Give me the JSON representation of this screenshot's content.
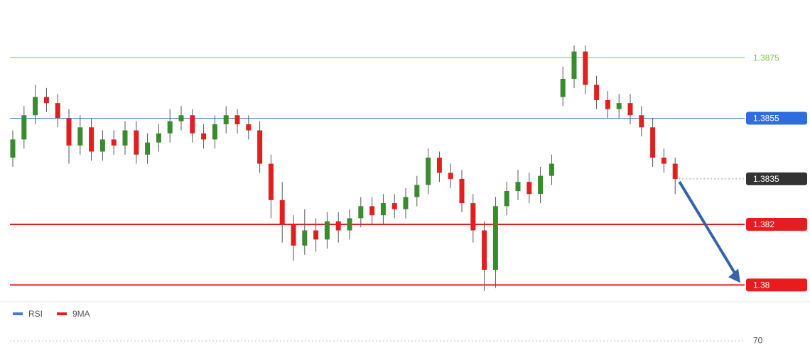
{
  "chart_data": {
    "type": "candlestick",
    "ylim": [
      1.3794,
      1.3894
    ],
    "open": [
      1.3842,
      1.3848,
      1.3856,
      1.3862,
      1.386,
      1.3855,
      1.3846,
      1.3852,
      1.3844,
      1.3848,
      1.3846,
      1.3851,
      1.3843,
      1.3847,
      1.385,
      1.3854,
      1.3856,
      1.385,
      1.3848,
      1.3853,
      1.3856,
      1.3853,
      1.3851,
      1.384,
      1.3828,
      1.382,
      1.3813,
      1.3818,
      1.3815,
      1.3821,
      1.3818,
      1.3822,
      1.3826,
      1.3823,
      1.3827,
      1.3825,
      1.3829,
      1.3833,
      1.3842,
      1.3837,
      1.3835,
      1.3827,
      1.3818,
      1.3805,
      1.3826,
      1.3831,
      1.3834,
      1.383,
      1.3836,
      1.3862,
      1.3868,
      1.3877,
      1.3866,
      1.3861,
      1.3858,
      1.386,
      1.3856,
      1.3852,
      1.3842,
      1.384
    ],
    "high": [
      1.3851,
      1.3859,
      1.3866,
      1.3865,
      1.3863,
      1.3858,
      1.3856,
      1.3855,
      1.3851,
      1.3851,
      1.3854,
      1.3854,
      1.385,
      1.3853,
      1.3858,
      1.3859,
      1.3858,
      1.3853,
      1.3856,
      1.3859,
      1.3858,
      1.3856,
      1.3854,
      1.3843,
      1.3834,
      1.3823,
      1.3825,
      1.3822,
      1.3824,
      1.3824,
      1.3825,
      1.3829,
      1.3829,
      1.383,
      1.383,
      1.3832,
      1.3836,
      1.3845,
      1.3844,
      1.384,
      1.3838,
      1.383,
      1.3821,
      1.3829,
      1.3834,
      1.3838,
      1.3837,
      1.3839,
      1.3843,
      1.3872,
      1.3879,
      1.3879,
      1.3869,
      1.3864,
      1.3863,
      1.3863,
      1.3859,
      1.3855,
      1.3845,
      1.3842
    ],
    "low": [
      1.3839,
      1.3845,
      1.3853,
      1.3857,
      1.3852,
      1.384,
      1.3843,
      1.3841,
      1.3841,
      1.3843,
      1.3843,
      1.384,
      1.384,
      1.3844,
      1.3847,
      1.3851,
      1.3847,
      1.3845,
      1.3845,
      1.385,
      1.385,
      1.3848,
      1.3837,
      1.3822,
      1.3814,
      1.3808,
      1.381,
      1.3811,
      1.3812,
      1.3814,
      1.3815,
      1.3819,
      1.382,
      1.382,
      1.3822,
      1.3822,
      1.3826,
      1.383,
      1.3834,
      1.3832,
      1.3824,
      1.3814,
      1.3798,
      1.3799,
      1.3823,
      1.3828,
      1.3827,
      1.3827,
      1.3833,
      1.3859,
      1.3865,
      1.3863,
      1.3858,
      1.3855,
      1.3855,
      1.3853,
      1.3849,
      1.3839,
      1.3837,
      1.383
    ],
    "close": [
      1.3848,
      1.3856,
      1.3862,
      1.386,
      1.3855,
      1.3846,
      1.3852,
      1.3844,
      1.3848,
      1.3846,
      1.3851,
      1.3843,
      1.3847,
      1.385,
      1.3854,
      1.3856,
      1.385,
      1.3848,
      1.3853,
      1.3856,
      1.3853,
      1.3851,
      1.384,
      1.3828,
      1.382,
      1.3813,
      1.3818,
      1.3815,
      1.3821,
      1.3818,
      1.3822,
      1.3826,
      1.3823,
      1.3827,
      1.3825,
      1.3829,
      1.3833,
      1.3842,
      1.3837,
      1.3835,
      1.3827,
      1.3818,
      1.3805,
      1.3826,
      1.3831,
      1.3834,
      1.383,
      1.3836,
      1.384,
      1.3868,
      1.3877,
      1.3866,
      1.3861,
      1.3858,
      1.386,
      1.3856,
      1.3852,
      1.3842,
      1.384,
      1.3835
    ],
    "up_color": "#3a8a2e",
    "down_color": "#e02020",
    "levels": [
      {
        "value": 1.3875,
        "color": "#7cc44a",
        "style": "text"
      },
      {
        "value": 1.3855,
        "color": "#2f6ce0",
        "style": "box"
      },
      {
        "value": 1.3835,
        "color": "#333333",
        "style": "box"
      },
      {
        "value": 1.382,
        "color": "#e81c1c",
        "style": "box"
      },
      {
        "value": 1.38,
        "color": "#e81c1c",
        "style": "box"
      }
    ],
    "rsi_panel": {
      "legend": [
        {
          "name": "RSI",
          "color": "#4a78d0"
        },
        {
          "name": "9MA",
          "color": "#e81c1c"
        }
      ],
      "ylim": [
        0,
        100
      ],
      "yticks": [
        70
      ]
    }
  }
}
